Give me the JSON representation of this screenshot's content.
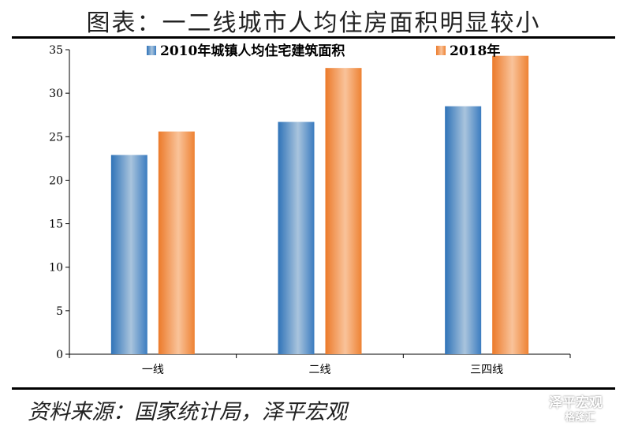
{
  "title": "图表：一二线城市人均住房面积明显较小",
  "source": "资料来源：国家统计局，泽平宏观",
  "watermark": {
    "name": "泽平宏观",
    "sub": "格隆汇"
  },
  "chart_data": {
    "type": "bar",
    "categories": [
      "一线",
      "二线",
      "三四线"
    ],
    "series": [
      {
        "name": "2010年城镇人均住宅建筑面积",
        "values": [
          22.9,
          26.7,
          28.5
        ],
        "color": "#4a86c0"
      },
      {
        "name": "2018年",
        "values": [
          25.6,
          32.9,
          34.3
        ],
        "color": "#f09048"
      }
    ],
    "ylim": [
      0,
      35
    ],
    "yticks": [
      0,
      5,
      10,
      15,
      20,
      25,
      30,
      35
    ],
    "xlabel": "",
    "ylabel": "",
    "grid": false,
    "legend": "top"
  }
}
